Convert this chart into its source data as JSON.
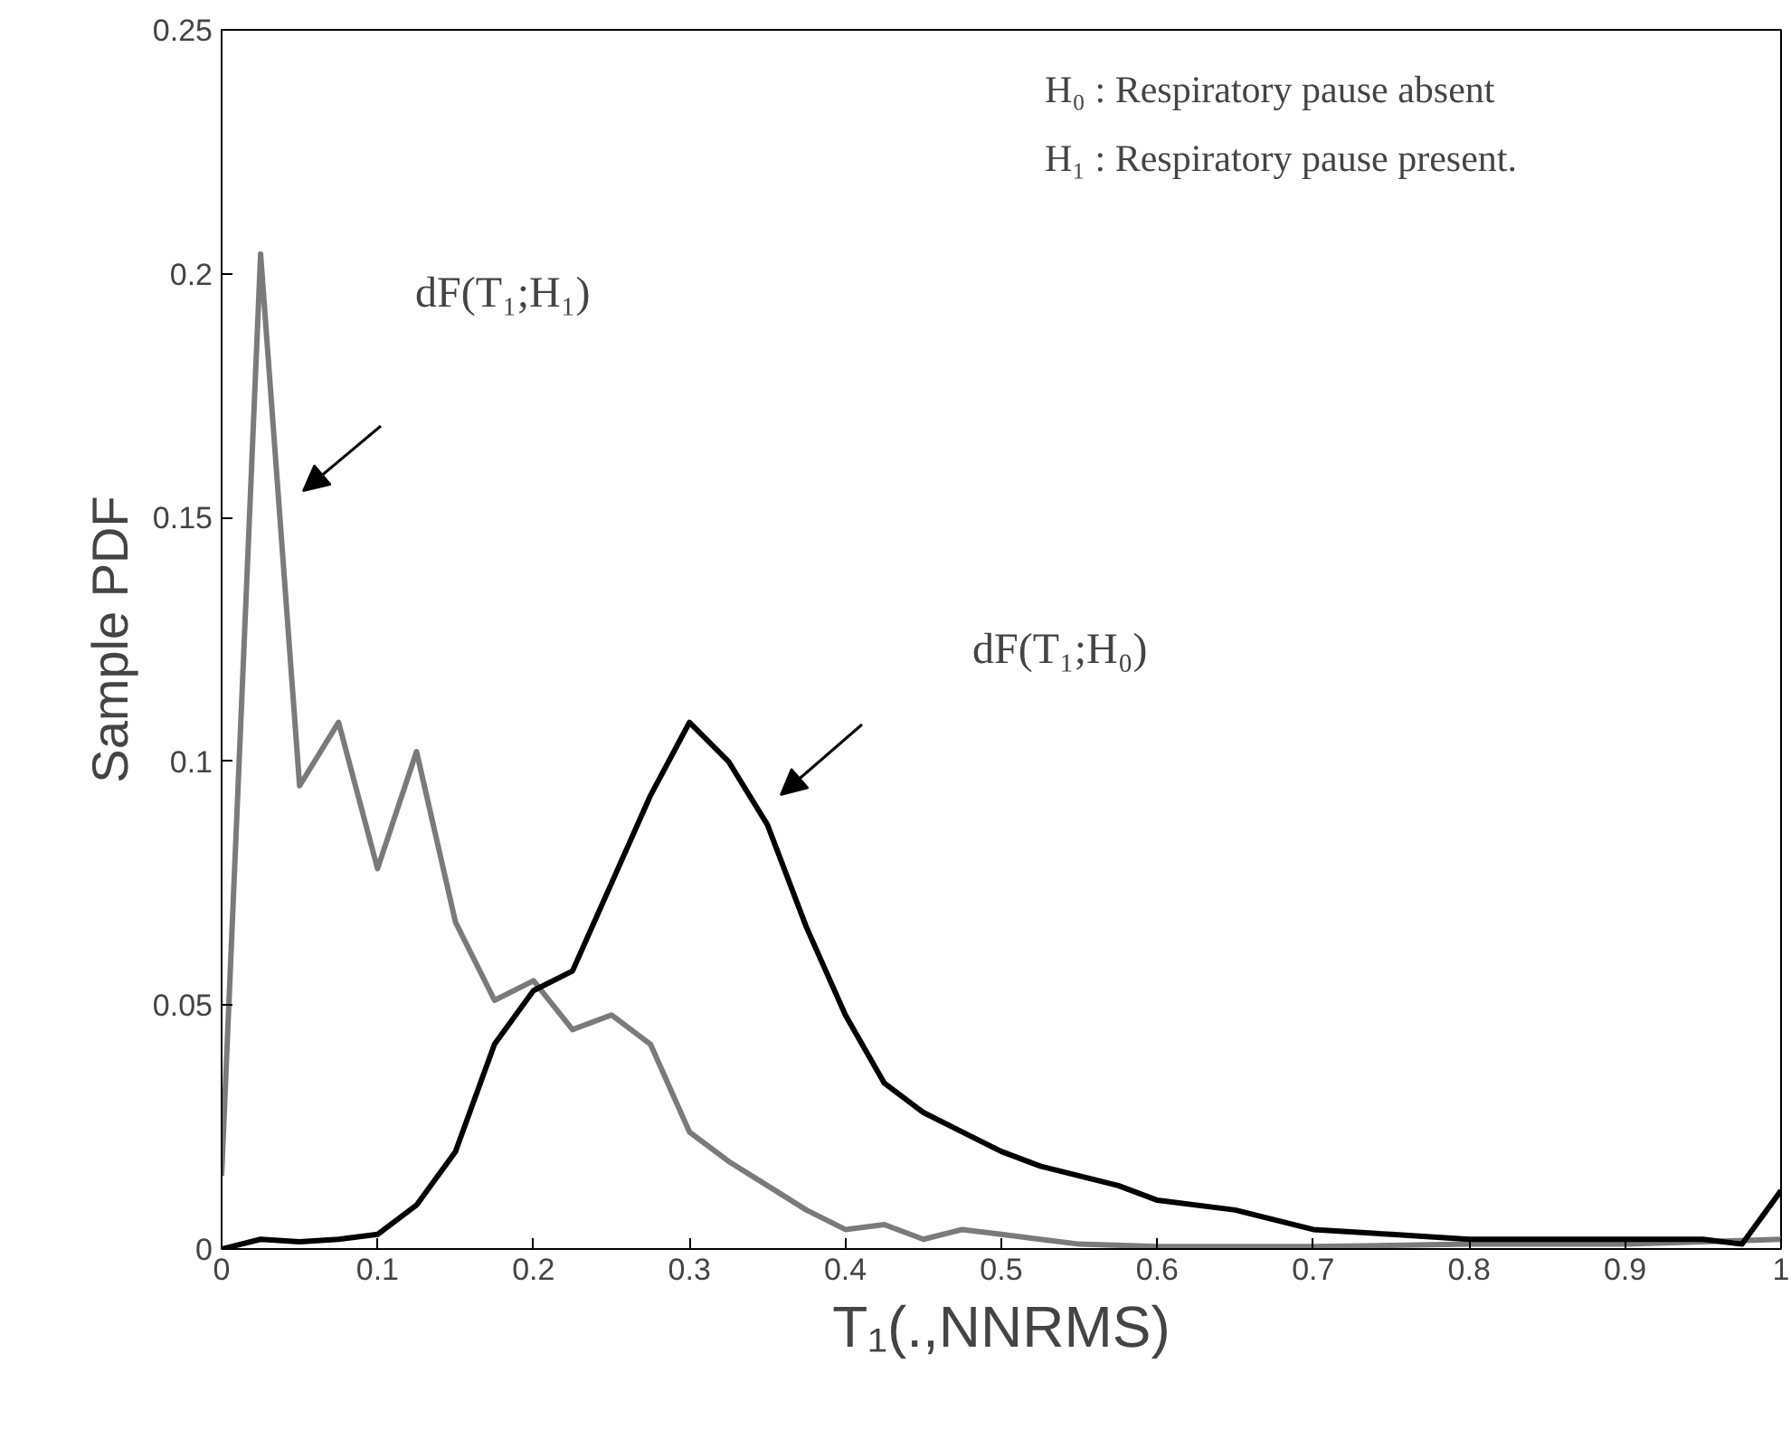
{
  "chart_data": {
    "type": "line",
    "xlabel": "T₁(.,NNRMS)",
    "ylabel": "Sample PDF",
    "xlim": [
      0,
      1
    ],
    "ylim": [
      0,
      0.25
    ],
    "xticks": [
      0,
      0.1,
      0.2,
      0.3,
      0.4,
      0.5,
      0.6,
      0.7,
      0.8,
      0.9,
      1
    ],
    "yticks": [
      0,
      0.05,
      0.1,
      0.15,
      0.2,
      0.25
    ],
    "grid": false,
    "series": [
      {
        "color": "#7a7a7a",
        "x": [
          0,
          0.025,
          0.05,
          0.075,
          0.1,
          0.125,
          0.15,
          0.175,
          0.2,
          0.225,
          0.25,
          0.275,
          0.3,
          0.325,
          0.35,
          0.375,
          0.4,
          0.425,
          0.45,
          0.475,
          0.5,
          0.525,
          0.55,
          0.6,
          0.7,
          0.8,
          0.9,
          0.95,
          1.0
        ],
        "values": [
          0.015,
          0.204,
          0.095,
          0.108,
          0.078,
          0.102,
          0.067,
          0.051,
          0.055,
          0.045,
          0.048,
          0.042,
          0.024,
          0.018,
          0.013,
          0.008,
          0.004,
          0.005,
          0.002,
          0.004,
          0.003,
          0.002,
          0.001,
          0.0005,
          0.0005,
          0.001,
          0.001,
          0.0015,
          0.002
        ]
      },
      {
        "color": "#000000",
        "x": [
          0,
          0.025,
          0.05,
          0.075,
          0.1,
          0.125,
          0.15,
          0.175,
          0.2,
          0.225,
          0.25,
          0.275,
          0.3,
          0.325,
          0.35,
          0.375,
          0.4,
          0.425,
          0.45,
          0.475,
          0.5,
          0.525,
          0.55,
          0.575,
          0.6,
          0.65,
          0.675,
          0.7,
          0.75,
          0.8,
          0.9,
          0.95,
          0.975,
          1.0
        ],
        "values": [
          0,
          0.002,
          0.0015,
          0.002,
          0.003,
          0.009,
          0.02,
          0.042,
          0.053,
          0.057,
          0.075,
          0.093,
          0.108,
          0.1,
          0.087,
          0.066,
          0.048,
          0.034,
          0.028,
          0.024,
          0.02,
          0.017,
          0.015,
          0.013,
          0.01,
          0.008,
          0.006,
          0.004,
          0.003,
          0.002,
          0.002,
          0.002,
          0.001,
          0.012
        ]
      }
    ],
    "annotations": [
      "dF(T₁;H₁)",
      "dF(T₁;H₀)",
      "H₀ : Respiratory pause absent",
      "H₁ : Respiratory pause present."
    ]
  }
}
